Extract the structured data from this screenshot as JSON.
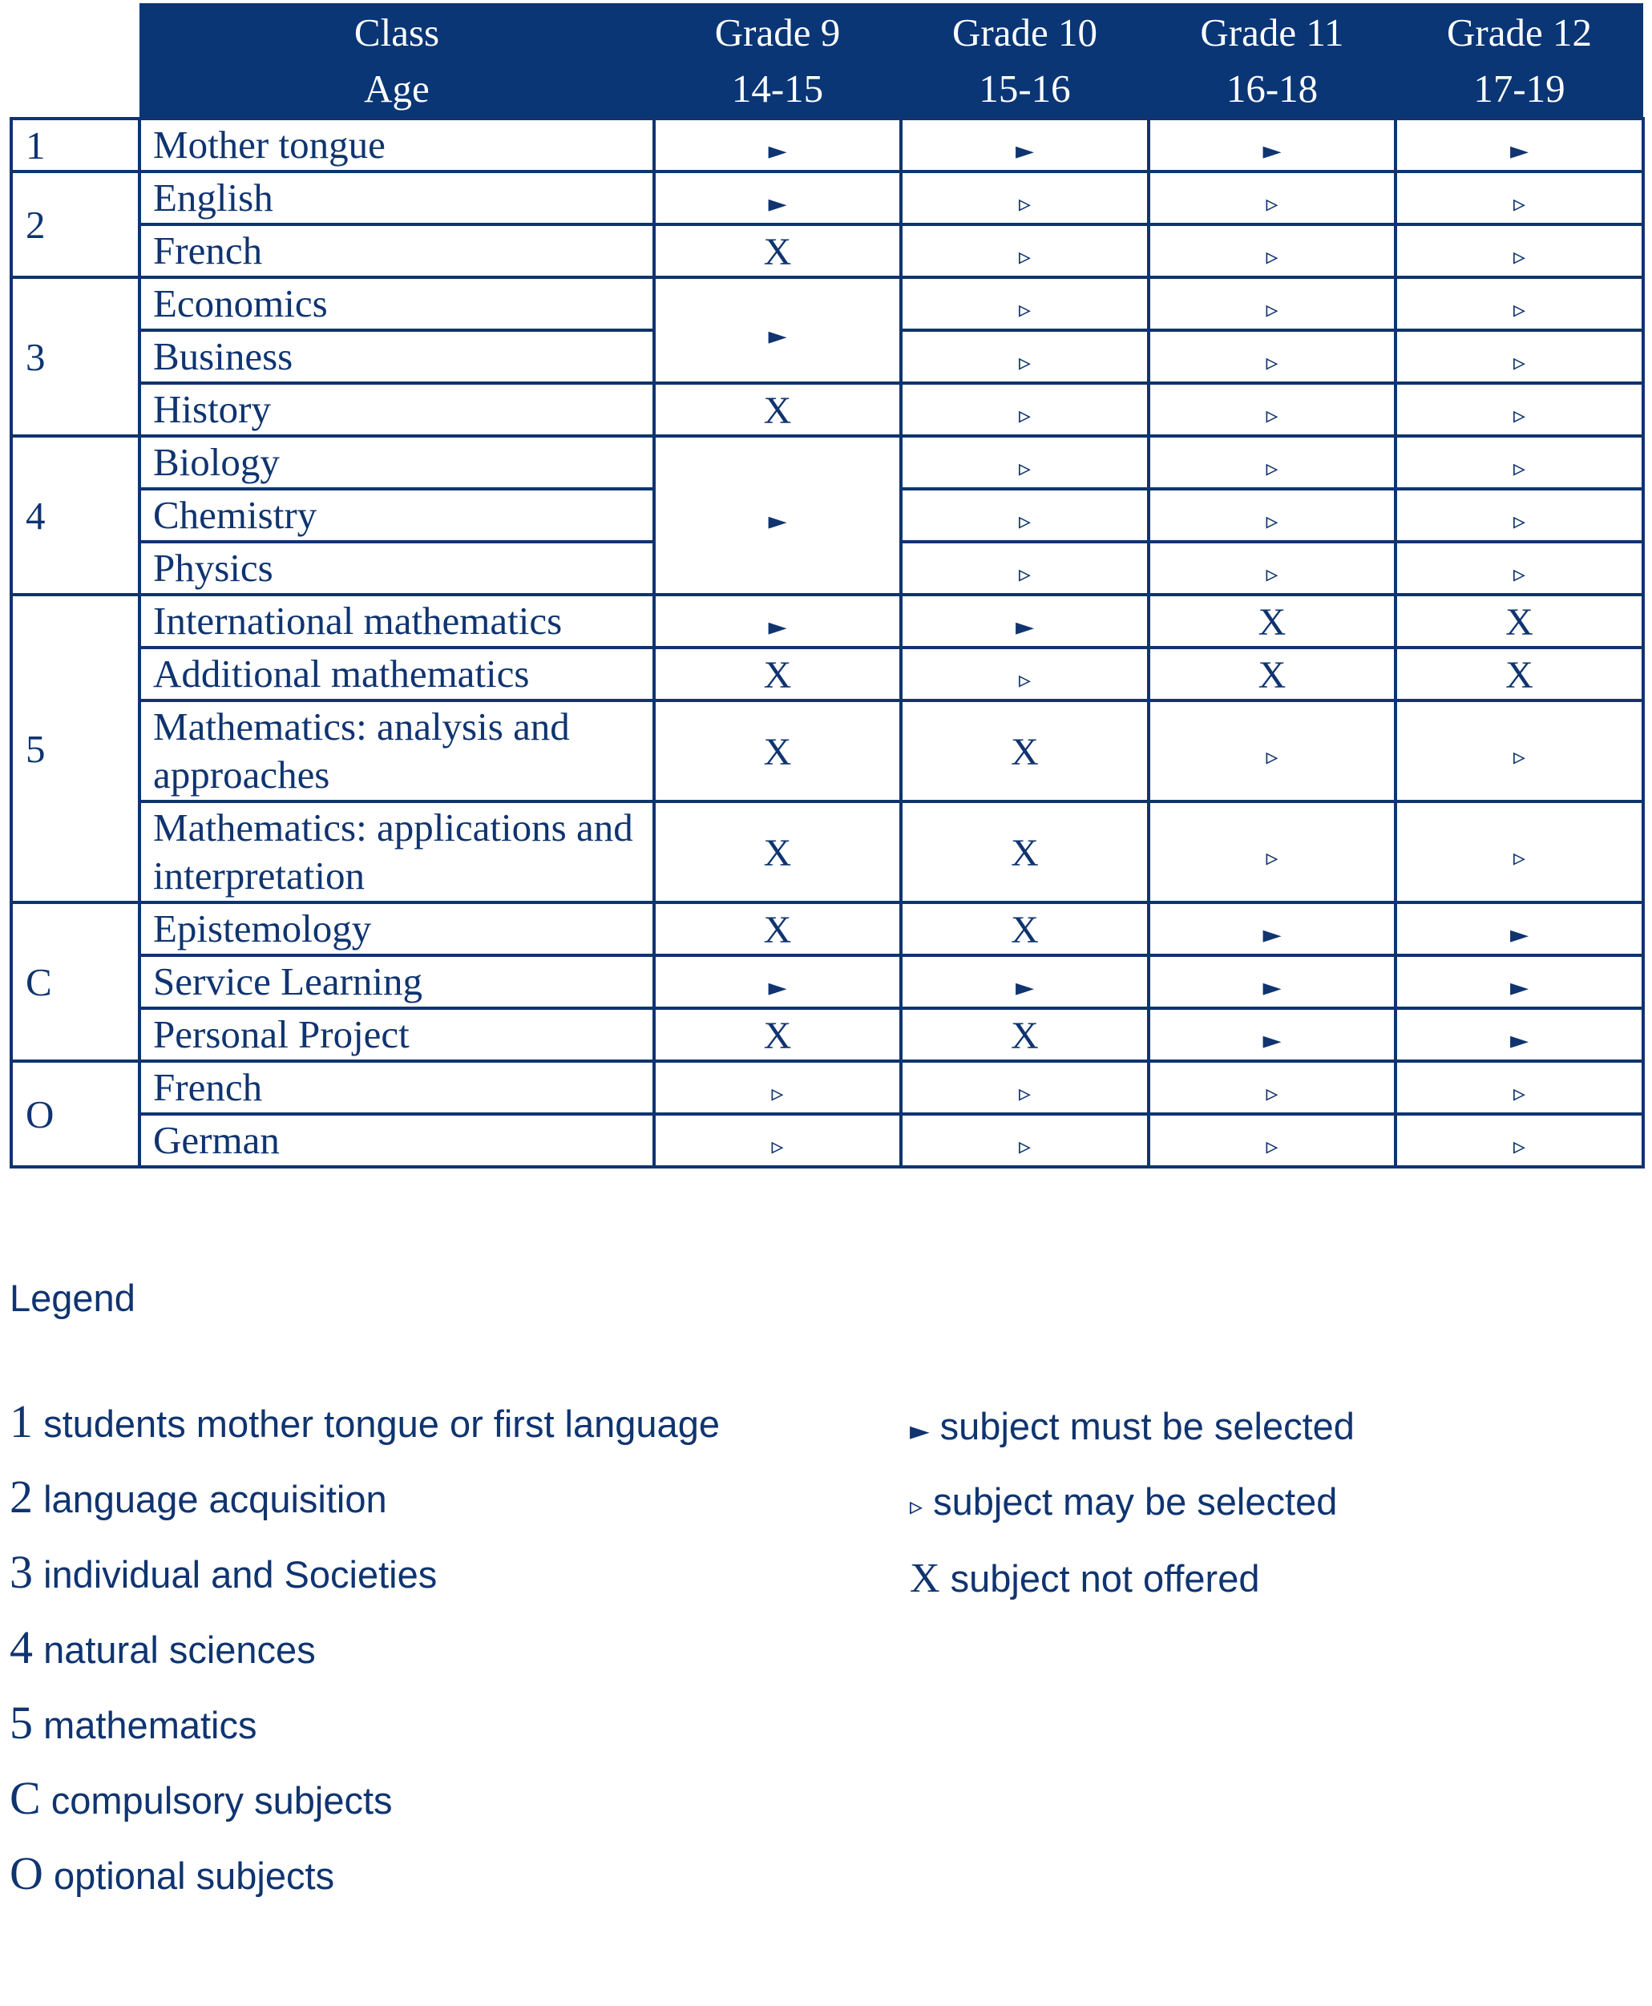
{
  "header": {
    "col1_line1": "Class",
    "col1_line2": "Age",
    "grades": [
      {
        "name": "Grade 9",
        "age": "14-15"
      },
      {
        "name": "Grade 10",
        "age": "15-16"
      },
      {
        "name": "Grade 11",
        "age": "16-18"
      },
      {
        "name": "Grade 12",
        "age": "17-19"
      }
    ]
  },
  "symbols": {
    "must": "►",
    "may": "▹",
    "not": "X"
  },
  "groups": [
    {
      "id": "1",
      "subjects": [
        "Mother tongue"
      ],
      "marks": [
        [
          "must",
          "must",
          "must",
          "must"
        ]
      ]
    },
    {
      "id": "2",
      "subjects": [
        "English",
        "French"
      ],
      "marks": [
        [
          "must",
          "may",
          "may",
          "may"
        ],
        [
          "not",
          "may",
          "may",
          "may"
        ]
      ]
    },
    {
      "id": "3",
      "subjects": [
        "Economics",
        "Business",
        "History"
      ],
      "marks": [
        [
          "must",
          "may",
          "may",
          "may"
        ],
        [
          "must",
          "may",
          "may",
          "may"
        ],
        [
          "not",
          "may",
          "may",
          "may"
        ]
      ]
    },
    {
      "id": "4",
      "subjects": [
        "Biology",
        "Chemistry",
        "Physics"
      ],
      "marks": [
        [
          "must",
          "may",
          "may",
          "may"
        ],
        [
          "must",
          "may",
          "may",
          "may"
        ],
        [
          "must",
          "may",
          "may",
          "may"
        ]
      ]
    },
    {
      "id": "5",
      "subjects": [
        "International mathematics",
        "Additional mathematics",
        "Mathematics: analysis and approaches",
        "Mathematics: applications and interpretation"
      ],
      "marks": [
        [
          "must",
          "must",
          "not",
          "not"
        ],
        [
          "not",
          "may",
          "not",
          "not"
        ],
        [
          "not",
          "not",
          "may",
          "may"
        ],
        [
          "not",
          "not",
          "may",
          "may"
        ]
      ]
    },
    {
      "id": "C",
      "subjects": [
        "Epistemology",
        "Service Learning",
        "Personal Project"
      ],
      "marks": [
        [
          "not",
          "not",
          "must",
          "must"
        ],
        [
          "must",
          "must",
          "must",
          "must"
        ],
        [
          "not",
          "not",
          "must",
          "must"
        ]
      ]
    },
    {
      "id": "O",
      "subjects": [
        "French",
        "German"
      ],
      "marks": [
        [
          "may",
          "may",
          "may",
          "may"
        ],
        [
          "may",
          "may",
          "may",
          "may"
        ]
      ]
    }
  ],
  "legend": {
    "title": "Legend",
    "groups": [
      {
        "key": "1",
        "text": "students mother tongue or first language"
      },
      {
        "key": "2",
        "text": "language acquisition"
      },
      {
        "key": "3",
        "text": "individual and Societies"
      },
      {
        "key": "4",
        "text": "natural sciences"
      },
      {
        "key": "5",
        "text": "mathematics"
      },
      {
        "key": "C",
        "text": "compulsory subjects"
      },
      {
        "key": "O",
        "text": "optional subjects"
      }
    ],
    "marks": [
      {
        "symbol": "►",
        "text": "subject must be selected"
      },
      {
        "symbol": "▹",
        "text": "subject may be selected"
      },
      {
        "symbol": "X",
        "text": "subject not offered"
      }
    ]
  }
}
